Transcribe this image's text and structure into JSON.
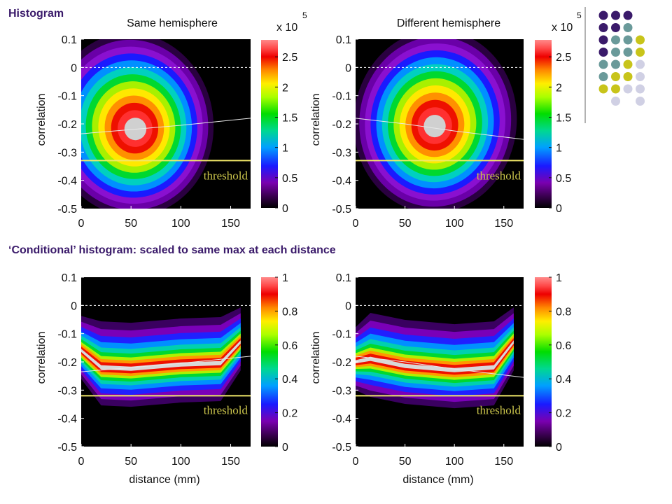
{
  "heading": "Histogram",
  "subheading": "‘Conditional’ histogram: scaled to same max at each distance",
  "colors": {
    "heading": "#3a1a6a",
    "threshold_line": "#f0e868",
    "threshold_text": "#c8c24a",
    "trend_line": "#e8e8e8",
    "plot_bg": "#000000"
  },
  "dot_colors": [
    "#3a1a6a",
    "#6a9a9a",
    "#c8c41a",
    "#d0d0e4"
  ],
  "dot_grid": [
    [
      0,
      0,
      0,
      -1
    ],
    [
      0,
      0,
      1,
      -1
    ],
    [
      0,
      1,
      1,
      2
    ],
    [
      0,
      1,
      1,
      2
    ],
    [
      1,
      1,
      2,
      3
    ],
    [
      1,
      2,
      2,
      3
    ],
    [
      2,
      2,
      3,
      3
    ],
    [
      -1,
      3,
      -1,
      3
    ]
  ],
  "chart_data": [
    {
      "type": "heatmap",
      "title": "Same hemisphere",
      "xlabel": "",
      "ylabel": "correlation",
      "xlim": [
        0,
        170
      ],
      "ylim": [
        -0.5,
        0.1
      ],
      "x_ticks": [
        "0",
        "50",
        "100",
        "150"
      ],
      "y_ticks": [
        "0.1",
        "0",
        "-0.1",
        "-0.2",
        "-0.3",
        "-0.4",
        "-0.5"
      ],
      "colorbar": {
        "ticks": [
          "2.5",
          "2",
          "1.5",
          "1",
          "0.5",
          "0"
        ],
        "multiplier_label": "x 10",
        "exponent": "5"
      },
      "peak": {
        "x": 55,
        "y": -0.22
      },
      "threshold": {
        "y": -0.33,
        "label": "threshold"
      },
      "zero_line": 0,
      "trend": [
        [
          0,
          -0.235
        ],
        [
          50,
          -0.22
        ],
        [
          100,
          -0.205
        ],
        [
          170,
          -0.18
        ]
      ]
    },
    {
      "type": "heatmap",
      "title": "Different hemisphere",
      "xlabel": "",
      "ylabel": "correlation",
      "xlim": [
        0,
        170
      ],
      "ylim": [
        -0.5,
        0.1
      ],
      "x_ticks": [
        "0",
        "50",
        "100",
        "150"
      ],
      "y_ticks": [
        "0.1",
        "0",
        "-0.1",
        "-0.2",
        "-0.3",
        "-0.4",
        "-0.5"
      ],
      "colorbar": {
        "ticks": [
          "2.5",
          "2",
          "1.5",
          "1",
          "0.5",
          "0"
        ],
        "multiplier_label": "x 10",
        "exponent": "5"
      },
      "peak": {
        "x": 80,
        "y": -0.21
      },
      "threshold": {
        "y": -0.33,
        "label": "threshold"
      },
      "zero_line": 0,
      "trend": [
        [
          0,
          -0.18
        ],
        [
          50,
          -0.2
        ],
        [
          100,
          -0.225
        ],
        [
          170,
          -0.255
        ]
      ]
    },
    {
      "type": "heatmap",
      "title": "",
      "xlabel": "distance (mm)",
      "ylabel": "correlation",
      "xlim": [
        0,
        170
      ],
      "ylim": [
        -0.5,
        0.1
      ],
      "x_ticks": [
        "0",
        "50",
        "100",
        "150"
      ],
      "y_ticks": [
        "0.1",
        "0",
        "-0.1",
        "-0.2",
        "-0.3",
        "-0.4",
        "-0.5"
      ],
      "colorbar": {
        "ticks": [
          "1",
          "0.8",
          "0.6",
          "0.4",
          "0.2",
          "0"
        ]
      },
      "ridge": [
        [
          0,
          -0.16
        ],
        [
          20,
          -0.22
        ],
        [
          50,
          -0.225
        ],
        [
          100,
          -0.21
        ],
        [
          140,
          -0.205
        ],
        [
          160,
          -0.13
        ]
      ],
      "threshold": {
        "y": -0.32,
        "label": "threshold"
      },
      "zero_line": 0,
      "trend": [
        [
          0,
          -0.235
        ],
        [
          50,
          -0.22
        ],
        [
          100,
          -0.205
        ],
        [
          170,
          -0.18
        ]
      ]
    },
    {
      "type": "heatmap",
      "title": "",
      "xlabel": "distance (mm)",
      "ylabel": "correlation",
      "xlim": [
        0,
        170
      ],
      "ylim": [
        -0.5,
        0.1
      ],
      "x_ticks": [
        "0",
        "50",
        "100",
        "150"
      ],
      "y_ticks": [
        "0.1",
        "0",
        "-0.1",
        "-0.2",
        "-0.3",
        "-0.4",
        "-0.5"
      ],
      "colorbar": {
        "ticks": [
          "1",
          "0.8",
          "0.6",
          "0.4",
          "0.2",
          "0"
        ]
      },
      "ridge": [
        [
          0,
          -0.2
        ],
        [
          15,
          -0.19
        ],
        [
          50,
          -0.215
        ],
        [
          100,
          -0.23
        ],
        [
          140,
          -0.22
        ],
        [
          160,
          -0.13
        ]
      ],
      "threshold": {
        "y": -0.32,
        "label": "threshold"
      },
      "zero_line": 0,
      "trend": [
        [
          0,
          -0.18
        ],
        [
          50,
          -0.2
        ],
        [
          100,
          -0.225
        ],
        [
          170,
          -0.255
        ]
      ]
    }
  ]
}
